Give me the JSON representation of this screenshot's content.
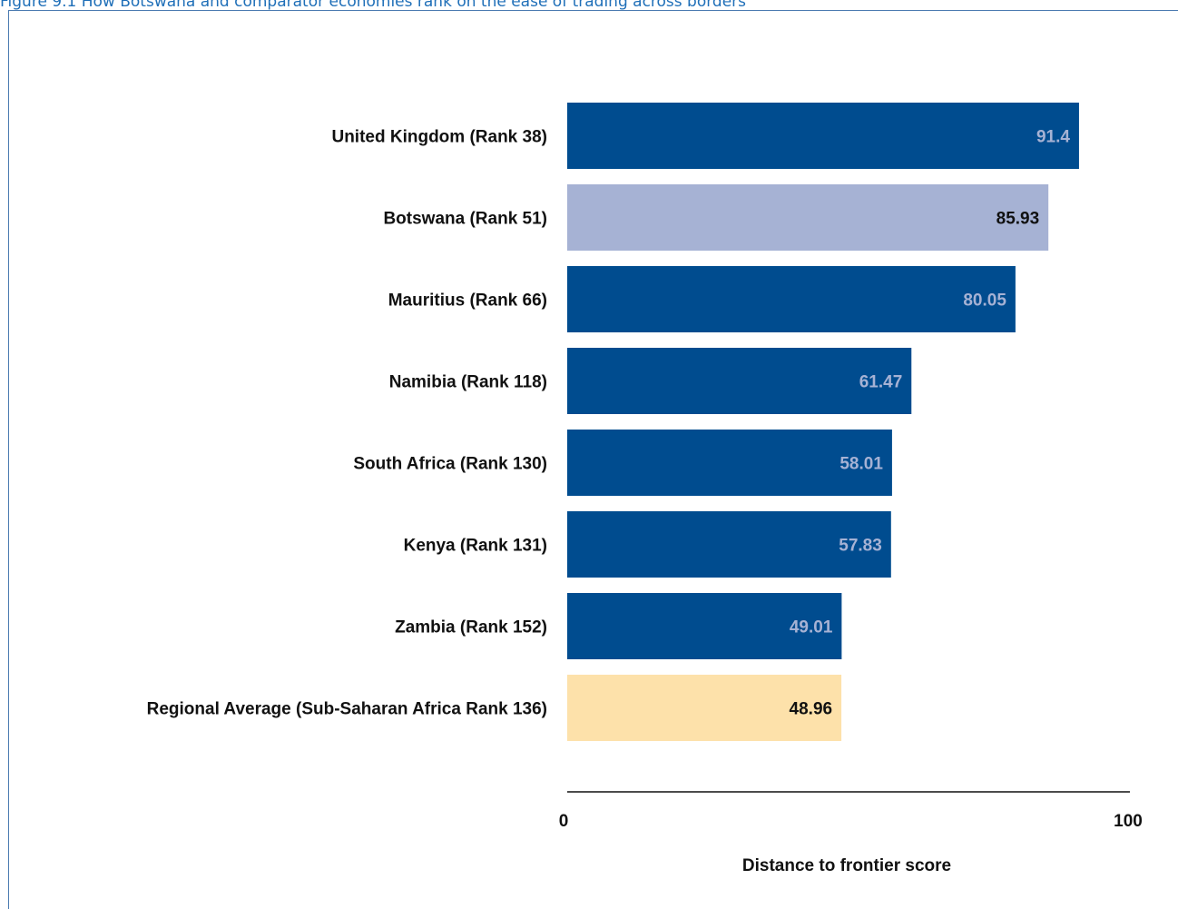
{
  "caption": "Figure 9.1 How Botswana and comparator economies rank on the ease of trading across borders",
  "colors": {
    "caption": "#1f6fb8",
    "frame": "#4a7ab0",
    "bar_default": "#004c8f",
    "bar_botswana": "#a6b2d4",
    "bar_regional": "#fde1aa",
    "label_on_dark": "#a6b2d4",
    "label_on_light": "#111111",
    "axis_line": "#111111"
  },
  "chart_data": {
    "type": "bar",
    "orientation": "horizontal",
    "title": "",
    "xlabel": "Distance to frontier score",
    "ylabel": "",
    "xlim": [
      0,
      100
    ],
    "xticks": [
      "0",
      "100"
    ],
    "grid": false,
    "categories": [
      "United Kingdom (Rank 38)",
      "Botswana (Rank 51)",
      "Mauritius (Rank 66)",
      "Namibia (Rank 118)",
      "South Africa (Rank 130)",
      "Kenya (Rank 131)",
      "Zambia (Rank 152)",
      "Regional Average (Sub-Saharan Africa Rank 136)"
    ],
    "values": [
      91.4,
      85.93,
      80.05,
      61.47,
      58.01,
      57.83,
      49.01,
      48.96
    ],
    "value_labels": [
      "91.4",
      "85.93",
      "80.05",
      "61.47",
      "58.01",
      "57.83",
      "49.01",
      "48.96"
    ],
    "bar_colors": [
      "#004c8f",
      "#a6b2d4",
      "#004c8f",
      "#004c8f",
      "#004c8f",
      "#004c8f",
      "#004c8f",
      "#fde1aa"
    ],
    "label_colors": [
      "#a6b2d4",
      "#111111",
      "#a6b2d4",
      "#a6b2d4",
      "#a6b2d4",
      "#a6b2d4",
      "#a6b2d4",
      "#111111"
    ]
  }
}
